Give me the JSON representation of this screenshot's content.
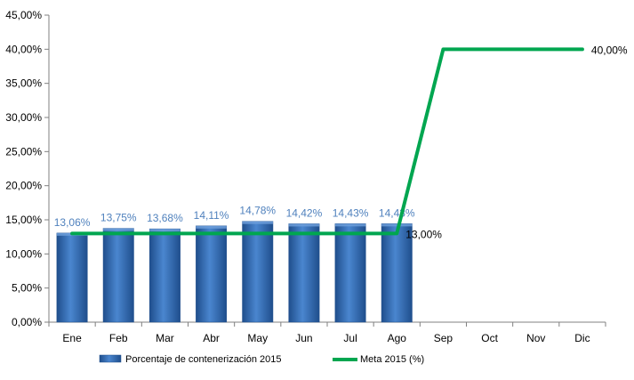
{
  "chart_data": {
    "type": "bar",
    "categories": [
      "Ene",
      "Feb",
      "Mar",
      "Abr",
      "May",
      "Jun",
      "Jul",
      "Ago",
      "Sep",
      "Oct",
      "Nov",
      "Dic"
    ],
    "series": [
      {
        "name": "Porcentaje de contenerización 2015",
        "type": "bar",
        "values": [
          13.06,
          13.75,
          13.68,
          14.11,
          14.78,
          14.42,
          14.43,
          14.43,
          null,
          null,
          null,
          null
        ],
        "labels": [
          "13,06%",
          "13,75%",
          "13,68%",
          "14,11%",
          "14,78%",
          "14,42%",
          "14,43%",
          "14,43%",
          "",
          "",
          "",
          ""
        ],
        "color": "#2F6AB6",
        "label_color": "#4F81BD"
      },
      {
        "name": "Meta 2015 (%)",
        "type": "line",
        "values": [
          13,
          13,
          13,
          13,
          13,
          13,
          13,
          13,
          40,
          40,
          40,
          40
        ],
        "point_labels": [
          {
            "index": 7,
            "text": "13,00%"
          },
          {
            "index": 11,
            "text": "40,00%"
          }
        ],
        "color": "#00A650"
      }
    ],
    "ylim": [
      0,
      45
    ],
    "yticks": [
      0,
      5,
      10,
      15,
      20,
      25,
      30,
      35,
      40,
      45
    ],
    "ytick_labels": [
      "0,00%",
      "5,00%",
      "10,00%",
      "15,00%",
      "20,00%",
      "25,00%",
      "30,00%",
      "35,00%",
      "40,00%",
      "45,00%"
    ],
    "title": "",
    "xlabel": "",
    "ylabel": "",
    "grid": false,
    "legend_position": "bottom"
  }
}
